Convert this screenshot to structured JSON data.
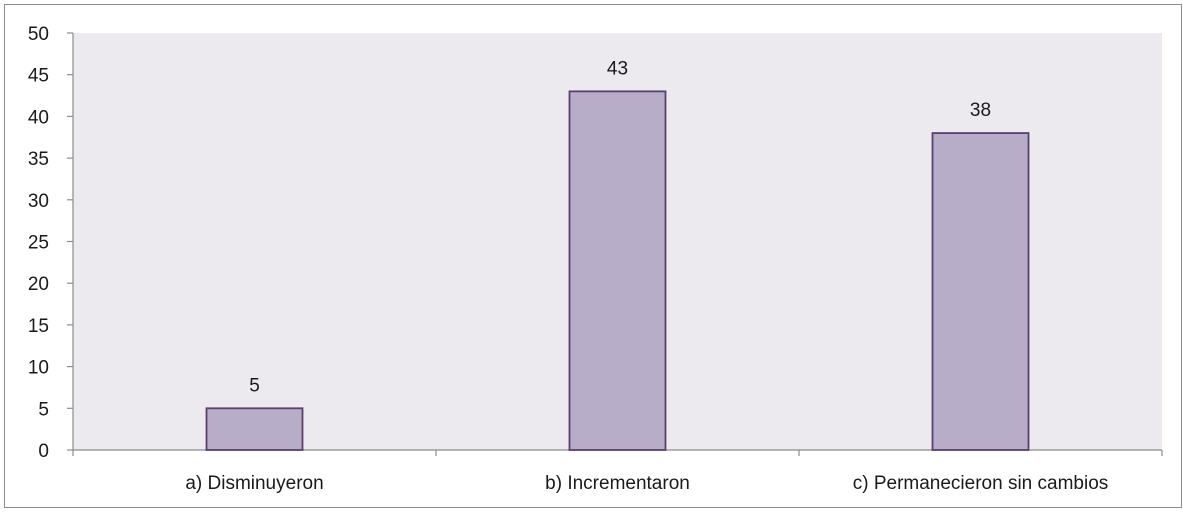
{
  "chart_data": {
    "type": "bar",
    "categories": [
      "a) Disminuyeron",
      "b) Incrementaron",
      "c) Permanecieron sin cambios"
    ],
    "values": [
      5,
      43,
      38
    ],
    "data_labels": [
      "5",
      "43",
      "38"
    ],
    "title": "",
    "xlabel": "",
    "ylabel": "",
    "ylim": [
      0,
      50
    ],
    "yticks": [
      0,
      5,
      10,
      15,
      20,
      25,
      30,
      35,
      40,
      45,
      50
    ],
    "grid": false,
    "legend": "none",
    "colors": {
      "plot_background": "#ece9ef",
      "bar_fill": "#b8adc9",
      "bar_stroke": "#5b3f6e",
      "axis": "#8c8c8c"
    }
  }
}
